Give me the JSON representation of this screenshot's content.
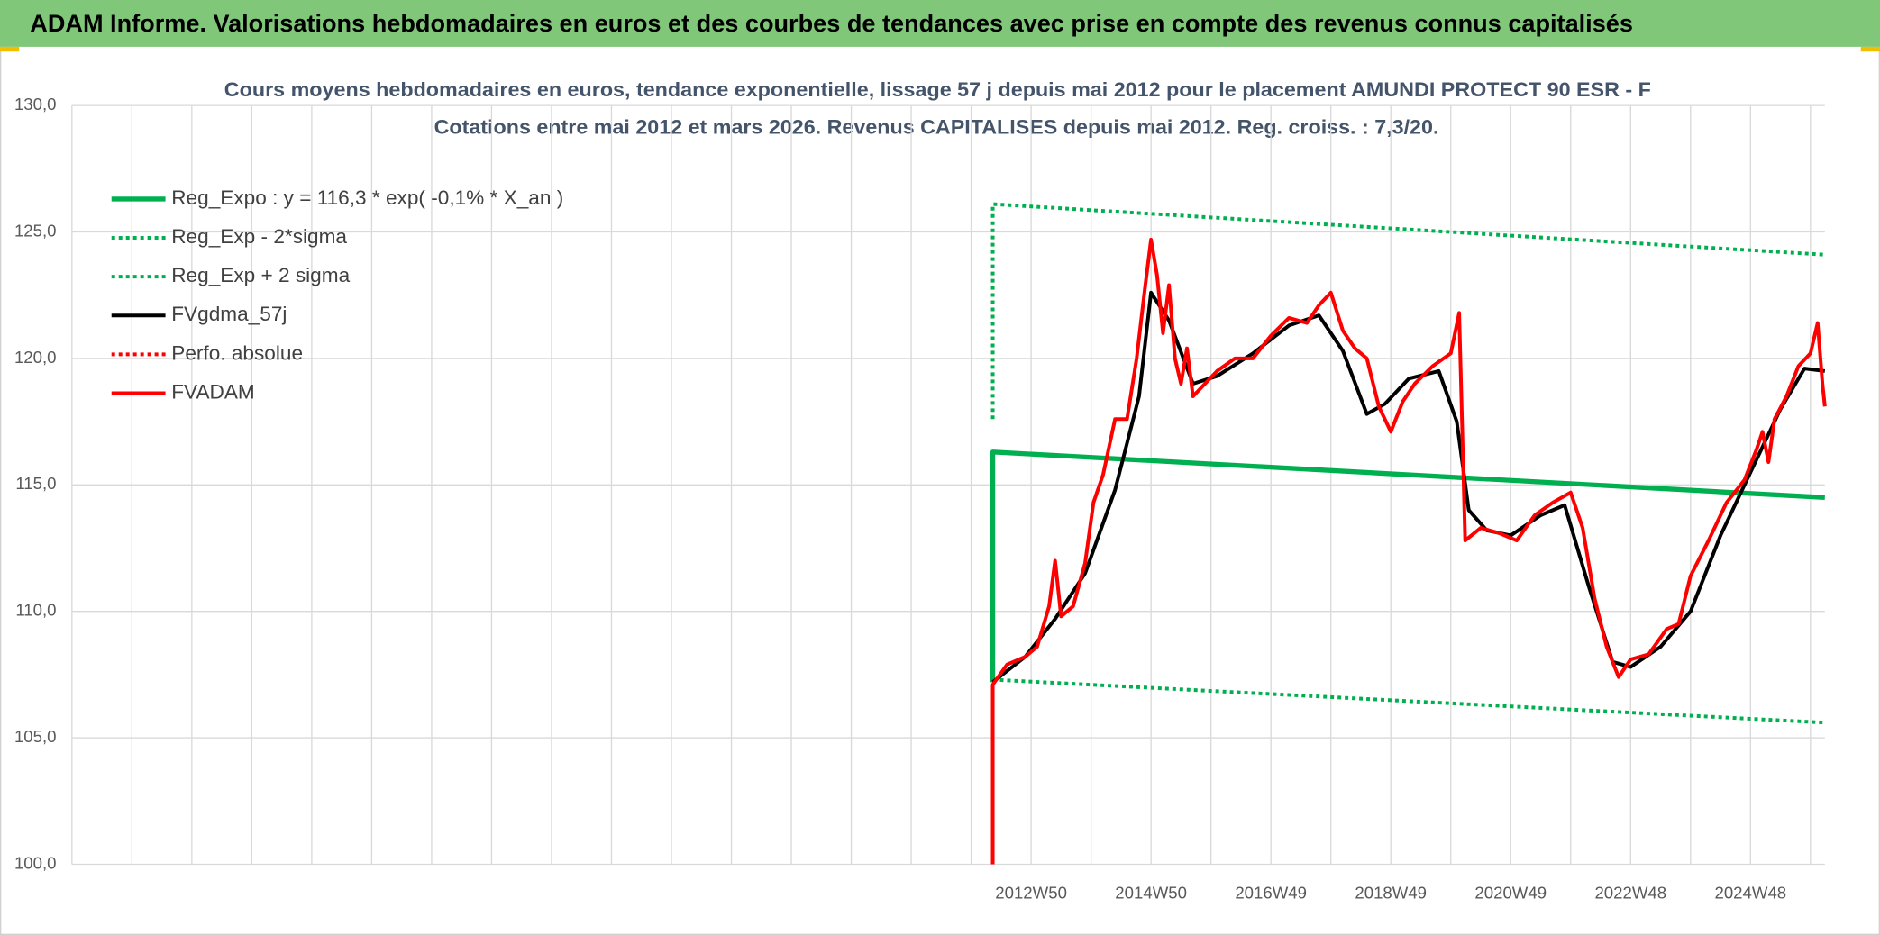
{
  "header": {
    "title": "ADAM Informe. Valorisations hebdomadaires en euros et des courbes de tendances avec prise en compte des revenus connus capitalisés"
  },
  "chart_data": {
    "type": "line",
    "title": "Cours moyens hebdomadaires en euros, tendance exponentielle, lissage 57 j depuis mai 2012 pour le placement AMUNDI PROTECT 90 ESR - F",
    "subtitle": "Cotations entre mai 2012 et mars 2026. Revenus CAPITALISES depuis mai 2012. Reg. croiss. : 7,3/20.",
    "xlim": [
      1996.95,
      2026.19
    ],
    "xticks": [
      {
        "value": 1996.95,
        "label": null
      },
      {
        "value": 1997.95,
        "label": null
      },
      {
        "value": 1998.95,
        "label": null
      },
      {
        "value": 1999.95,
        "label": null
      },
      {
        "value": 2000.95,
        "label": null
      },
      {
        "value": 2001.95,
        "label": null
      },
      {
        "value": 2002.95,
        "label": null
      },
      {
        "value": 2003.95,
        "label": null
      },
      {
        "value": 2004.95,
        "label": null
      },
      {
        "value": 2005.95,
        "label": null
      },
      {
        "value": 2006.95,
        "label": null
      },
      {
        "value": 2007.95,
        "label": null
      },
      {
        "value": 2008.95,
        "label": null
      },
      {
        "value": 2009.95,
        "label": null
      },
      {
        "value": 2010.95,
        "label": null
      },
      {
        "value": 2011.95,
        "label": null
      },
      {
        "value": 2012.95,
        "label": "2012W50"
      },
      {
        "value": 2013.95,
        "label": null
      },
      {
        "value": 2014.95,
        "label": "2014W50"
      },
      {
        "value": 2015.95,
        "label": null
      },
      {
        "value": 2016.95,
        "label": "2016W49"
      },
      {
        "value": 2017.95,
        "label": null
      },
      {
        "value": 2018.95,
        "label": "2018W49"
      },
      {
        "value": 2019.95,
        "label": null
      },
      {
        "value": 2020.95,
        "label": "2020W49"
      },
      {
        "value": 2021.95,
        "label": null
      },
      {
        "value": 2022.95,
        "label": "2022W48"
      },
      {
        "value": 2023.95,
        "label": null
      },
      {
        "value": 2024.95,
        "label": "2024W48"
      },
      {
        "value": 2025.95,
        "label": null
      }
    ],
    "ylim": [
      100,
      130
    ],
    "yticks": [
      {
        "value": 100,
        "label": "100,0"
      },
      {
        "value": 105,
        "label": "105,0"
      },
      {
        "value": 110,
        "label": "110,0"
      },
      {
        "value": 115,
        "label": "115,0"
      },
      {
        "value": 120,
        "label": "120,0"
      },
      {
        "value": 125,
        "label": "125,0"
      },
      {
        "value": 130,
        "label": "130,0"
      }
    ],
    "grid": true,
    "legend": "top-left",
    "series": [
      {
        "name": "Reg_Expo : y = 116,3 * exp( -0,1% *  X_an )",
        "color": "#00b050",
        "style": "solid",
        "width": 4,
        "x": [
          2012.31,
          2012.31,
          2026.19
        ],
        "values": [
          107.2,
          116.3,
          114.5
        ]
      },
      {
        "name": "Reg_Exp - 2*sigma",
        "color": "#00b050",
        "style": "dotted",
        "width": 3,
        "x": [
          2012.31,
          2026.19
        ],
        "values": [
          107.3,
          105.6
        ]
      },
      {
        "name": "Reg_Exp + 2 sigma",
        "color": "#00b050",
        "style": "dotted",
        "width": 3,
        "x": [
          2012.31,
          2012.31,
          2026.19
        ],
        "values": [
          117.6,
          126.1,
          124.1
        ]
      },
      {
        "name": "FVgdma_57j",
        "color": "#000000",
        "style": "solid",
        "width": 3,
        "x": [
          2012.31,
          2012.85,
          2013.35,
          2013.85,
          2014.35,
          2014.75,
          2014.95,
          2015.25,
          2015.65,
          2016.05,
          2016.65,
          2017.25,
          2017.75,
          2018.15,
          2018.55,
          2018.85,
          2019.25,
          2019.75,
          2020.05,
          2020.25,
          2020.55,
          2020.95,
          2021.45,
          2021.85,
          2022.25,
          2022.65,
          2022.95,
          2023.45,
          2023.95,
          2024.45,
          2024.95,
          2025.45,
          2025.85,
          2026.19
        ],
        "values": [
          107.2,
          108.2,
          109.7,
          111.5,
          114.8,
          118.5,
          122.6,
          121.5,
          119.0,
          119.3,
          120.2,
          121.3,
          121.7,
          120.3,
          117.8,
          118.2,
          119.2,
          119.5,
          117.5,
          114.0,
          113.2,
          113.0,
          113.8,
          114.2,
          111.0,
          108.0,
          107.8,
          108.6,
          110.0,
          113.0,
          115.5,
          118.0,
          119.6,
          119.5
        ]
      },
      {
        "name": "Perfo. absolue",
        "color": "#ff0000",
        "style": "dotted",
        "width": 2,
        "x": [],
        "values": []
      },
      {
        "name": "FVADAM",
        "color": "#ff0000",
        "style": "solid",
        "width": 3,
        "x": [
          2012.31,
          2012.31,
          2012.55,
          2012.85,
          2013.05,
          2013.25,
          2013.35,
          2013.45,
          2013.65,
          2013.85,
          2013.99,
          2014.15,
          2014.35,
          2014.55,
          2014.71,
          2014.85,
          2014.95,
          2015.05,
          2015.15,
          2015.25,
          2015.35,
          2015.45,
          2015.55,
          2015.65,
          2015.85,
          2016.05,
          2016.35,
          2016.65,
          2016.95,
          2017.25,
          2017.55,
          2017.75,
          2017.95,
          2018.15,
          2018.35,
          2018.55,
          2018.75,
          2018.95,
          2019.15,
          2019.35,
          2019.65,
          2019.95,
          2020.09,
          2020.19,
          2020.45,
          2020.75,
          2021.05,
          2021.35,
          2021.65,
          2021.95,
          2022.15,
          2022.35,
          2022.55,
          2022.75,
          2022.95,
          2023.25,
          2023.55,
          2023.75,
          2023.95,
          2024.25,
          2024.55,
          2024.85,
          2025.05,
          2025.15,
          2025.25,
          2025.35,
          2025.55,
          2025.75,
          2025.95,
          2026.07,
          2026.15,
          2026.19
        ],
        "values": [
          100,
          107.1,
          107.9,
          108.2,
          108.6,
          110.2,
          112.0,
          109.8,
          110.2,
          111.9,
          114.3,
          115.4,
          117.6,
          117.6,
          120.0,
          122.8,
          124.7,
          123.3,
          121.0,
          122.9,
          120.0,
          119.0,
          120.4,
          118.5,
          119.0,
          119.5,
          120.0,
          120.0,
          120.9,
          121.6,
          121.4,
          122.1,
          122.6,
          121.1,
          120.4,
          120.0,
          118.1,
          117.1,
          118.3,
          119.0,
          119.7,
          120.2,
          121.8,
          112.8,
          113.3,
          113.1,
          112.8,
          113.8,
          114.3,
          114.7,
          113.3,
          110.5,
          108.6,
          107.4,
          108.1,
          108.3,
          109.3,
          109.5,
          111.4,
          112.8,
          114.3,
          115.2,
          116.4,
          117.1,
          115.9,
          117.6,
          118.5,
          119.7,
          120.2,
          121.4,
          119.0,
          118.1
        ]
      }
    ]
  }
}
